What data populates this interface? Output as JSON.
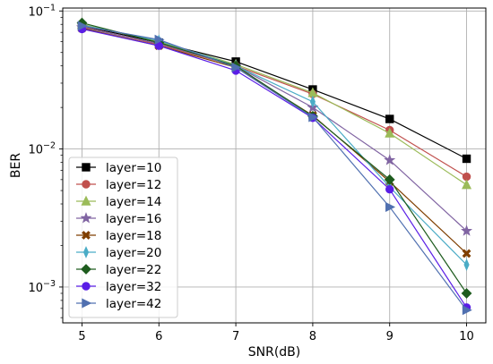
{
  "chart_data": {
    "type": "line",
    "xlabel": "SNR(dB)",
    "ylabel": "BER",
    "x": [
      5,
      6,
      7,
      8,
      9,
      10
    ],
    "xlim": [
      4.75,
      10.25
    ],
    "ylim": [
      0.00055,
      0.105
    ],
    "yscale": "log",
    "grid": true,
    "legend_position": "lower-left",
    "x_ticks": [
      "5",
      "6",
      "7",
      "8",
      "9",
      "10"
    ],
    "y_ticks": [
      {
        "value": 0.001,
        "base": "10",
        "exp": "−3"
      },
      {
        "value": 0.01,
        "base": "10",
        "exp": "−2"
      },
      {
        "value": 0.1,
        "base": "10",
        "exp": "−1"
      }
    ],
    "series": [
      {
        "name": "layer=10",
        "color": "#000000",
        "marker": "square",
        "values": [
          0.078,
          0.059,
          0.043,
          0.027,
          0.0165,
          0.0085
        ]
      },
      {
        "name": "layer=12",
        "color": "#c0504d",
        "marker": "circle",
        "values": [
          0.077,
          0.057,
          0.04,
          0.025,
          0.0137,
          0.0063
        ]
      },
      {
        "name": "layer=14",
        "color": "#9bbb59",
        "marker": "triangle-up",
        "values": [
          0.08,
          0.06,
          0.041,
          0.0255,
          0.013,
          0.0055
        ]
      },
      {
        "name": "layer=16",
        "color": "#8064a2",
        "marker": "star",
        "values": [
          0.076,
          0.058,
          0.04,
          0.02,
          0.0083,
          0.00255
        ]
      },
      {
        "name": "layer=18",
        "color": "#7f3f00",
        "marker": "x-filled",
        "values": [
          0.075,
          0.056,
          0.039,
          0.0175,
          0.0058,
          0.00175
        ]
      },
      {
        "name": "layer=20",
        "color": "#4bacc6",
        "marker": "thin-diamond",
        "values": [
          0.079,
          0.061,
          0.04,
          0.022,
          0.0053,
          0.00145
        ]
      },
      {
        "name": "layer=22",
        "color": "#1e5c1e",
        "marker": "diamond",
        "values": [
          0.082,
          0.059,
          0.04,
          0.0173,
          0.006,
          0.0009
        ]
      },
      {
        "name": "layer=32",
        "color": "#5a1ee6",
        "marker": "circle",
        "values": [
          0.074,
          0.056,
          0.037,
          0.0168,
          0.0051,
          0.00071
        ]
      },
      {
        "name": "layer=42",
        "color": "#5070b0",
        "marker": "triangle-right",
        "values": [
          0.078,
          0.062,
          0.039,
          0.017,
          0.0038,
          0.00068
        ]
      }
    ]
  }
}
